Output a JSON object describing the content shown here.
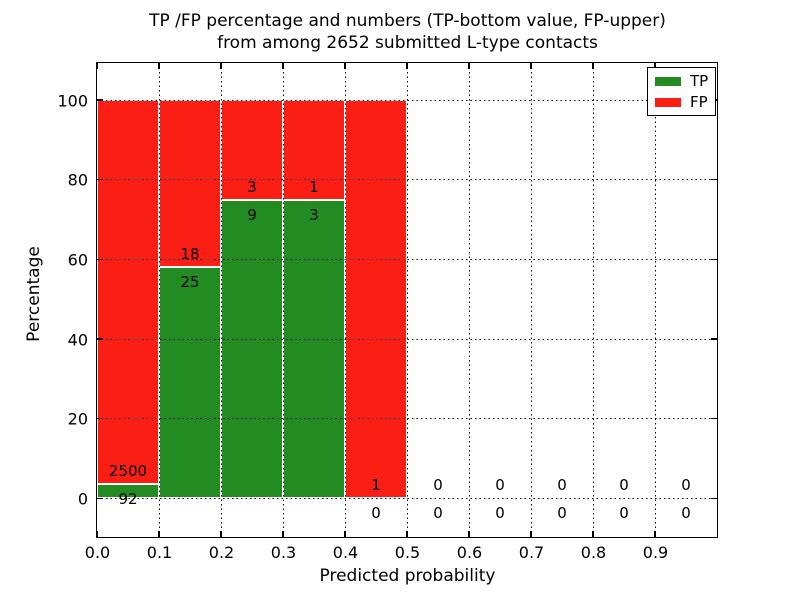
{
  "title": {
    "line1": "TP /FP percentage and numbers (TP-bottom value, FP-upper)",
    "line2": "from among 2652 submitted L-type contacts"
  },
  "axes": {
    "xlabel": "Predicted probability",
    "ylabel": "Percentage"
  },
  "legend": {
    "items": [
      {
        "label": "TP",
        "color": "#228b22"
      },
      {
        "label": "FP",
        "color": "#fb1e14"
      }
    ]
  },
  "chart_data": {
    "type": "bar",
    "stacked": true,
    "title": "TP /FP percentage and numbers (TP-bottom value, FP-upper) from among 2652 submitted L-type contacts",
    "xlabel": "Predicted probability",
    "ylabel": "Percentage",
    "xlim": [
      0,
      1.0
    ],
    "ylim": [
      -9.7,
      109.3
    ],
    "grid": "dotted",
    "legend_position": "upper right",
    "total_submitted": "2652",
    "x_ticks": [
      {
        "value": 0.0,
        "label": "0.0"
      },
      {
        "value": 0.1,
        "label": "0.1"
      },
      {
        "value": 0.2,
        "label": "0.2"
      },
      {
        "value": 0.3,
        "label": "0.3"
      },
      {
        "value": 0.4,
        "label": "0.4"
      },
      {
        "value": 0.5,
        "label": "0.5"
      },
      {
        "value": 0.6,
        "label": "0.6"
      },
      {
        "value": 0.7,
        "label": "0.7"
      },
      {
        "value": 0.8,
        "label": "0.8"
      },
      {
        "value": 0.9,
        "label": "0.9"
      }
    ],
    "y_ticks": [
      {
        "value": 0,
        "label": "0"
      },
      {
        "value": 20,
        "label": "20"
      },
      {
        "value": 40,
        "label": "40"
      },
      {
        "value": 60,
        "label": "60"
      },
      {
        "value": 80,
        "label": "80"
      },
      {
        "value": 100,
        "label": "100"
      }
    ],
    "bin_width": 0.1,
    "series": [
      {
        "name": "TP",
        "color": "#228b22",
        "values": [
          92,
          25,
          9,
          3,
          0,
          0,
          0,
          0,
          0,
          0
        ]
      },
      {
        "name": "FP",
        "color": "#fb1e14",
        "values": [
          2500,
          18,
          3,
          1,
          1,
          0,
          0,
          0,
          0,
          0
        ]
      }
    ],
    "bins": [
      {
        "range": [
          0.0,
          0.1
        ],
        "tp": 92,
        "fp": 2500,
        "tp_pct": 3.5
      },
      {
        "range": [
          0.1,
          0.2
        ],
        "tp": 25,
        "fp": 18,
        "tp_pct": 58.1
      },
      {
        "range": [
          0.2,
          0.3
        ],
        "tp": 9,
        "fp": 3,
        "tp_pct": 75.0
      },
      {
        "range": [
          0.3,
          0.4
        ],
        "tp": 3,
        "fp": 1,
        "tp_pct": 75.0
      },
      {
        "range": [
          0.4,
          0.5
        ],
        "tp": 0,
        "fp": 1,
        "tp_pct": 0.0
      },
      {
        "range": [
          0.5,
          0.6
        ],
        "tp": 0,
        "fp": 0,
        "tp_pct": null
      },
      {
        "range": [
          0.6,
          0.7
        ],
        "tp": 0,
        "fp": 0,
        "tp_pct": null
      },
      {
        "range": [
          0.7,
          0.8
        ],
        "tp": 0,
        "fp": 0,
        "tp_pct": null
      },
      {
        "range": [
          0.8,
          0.9
        ],
        "tp": 0,
        "fp": 0,
        "tp_pct": null
      },
      {
        "range": [
          0.9,
          1.0
        ],
        "tp": 0,
        "fp": 0,
        "tp_pct": null
      }
    ]
  }
}
